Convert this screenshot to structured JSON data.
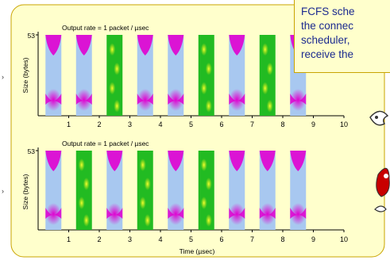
{
  "colors": {
    "frame_fill": "#ffffcc",
    "frame_border": "#c9a400",
    "blue_packet": "#a8c8f0",
    "green_packet": "#22bb22",
    "magenta_blob": "#e000d0",
    "yellow_blob": "#d8ee10",
    "callout_text": "#1b2a8f"
  },
  "callout": {
    "lines": [
      "FCFS sche",
      "the connec",
      "scheduler,",
      "receive the"
    ]
  },
  "chart_data": [
    {
      "type": "timeline",
      "title": "Output rate = 1 packet / µsec",
      "ylabel": "Size (bytes)",
      "y_tick": "53",
      "x_ticks": [
        "1",
        "2",
        "3",
        "4",
        "5",
        "6",
        "7",
        "8",
        "9",
        "10"
      ],
      "packets": [
        "blue",
        "blue",
        "green",
        "blue",
        "blue",
        "green",
        "blue",
        "green",
        "blue"
      ]
    },
    {
      "type": "timeline",
      "title": "Output rate = 1 packet / µsec",
      "ylabel": "Size (bytes)",
      "y_tick": "53",
      "x_ticks": [
        "1",
        "2",
        "3",
        "4",
        "5",
        "6",
        "7",
        "8",
        "9",
        "10"
      ],
      "xlabel": "Time (µsec)",
      "packets": [
        "blue",
        "green",
        "blue",
        "green",
        "blue",
        "green",
        "blue",
        "blue",
        "blue"
      ]
    }
  ]
}
